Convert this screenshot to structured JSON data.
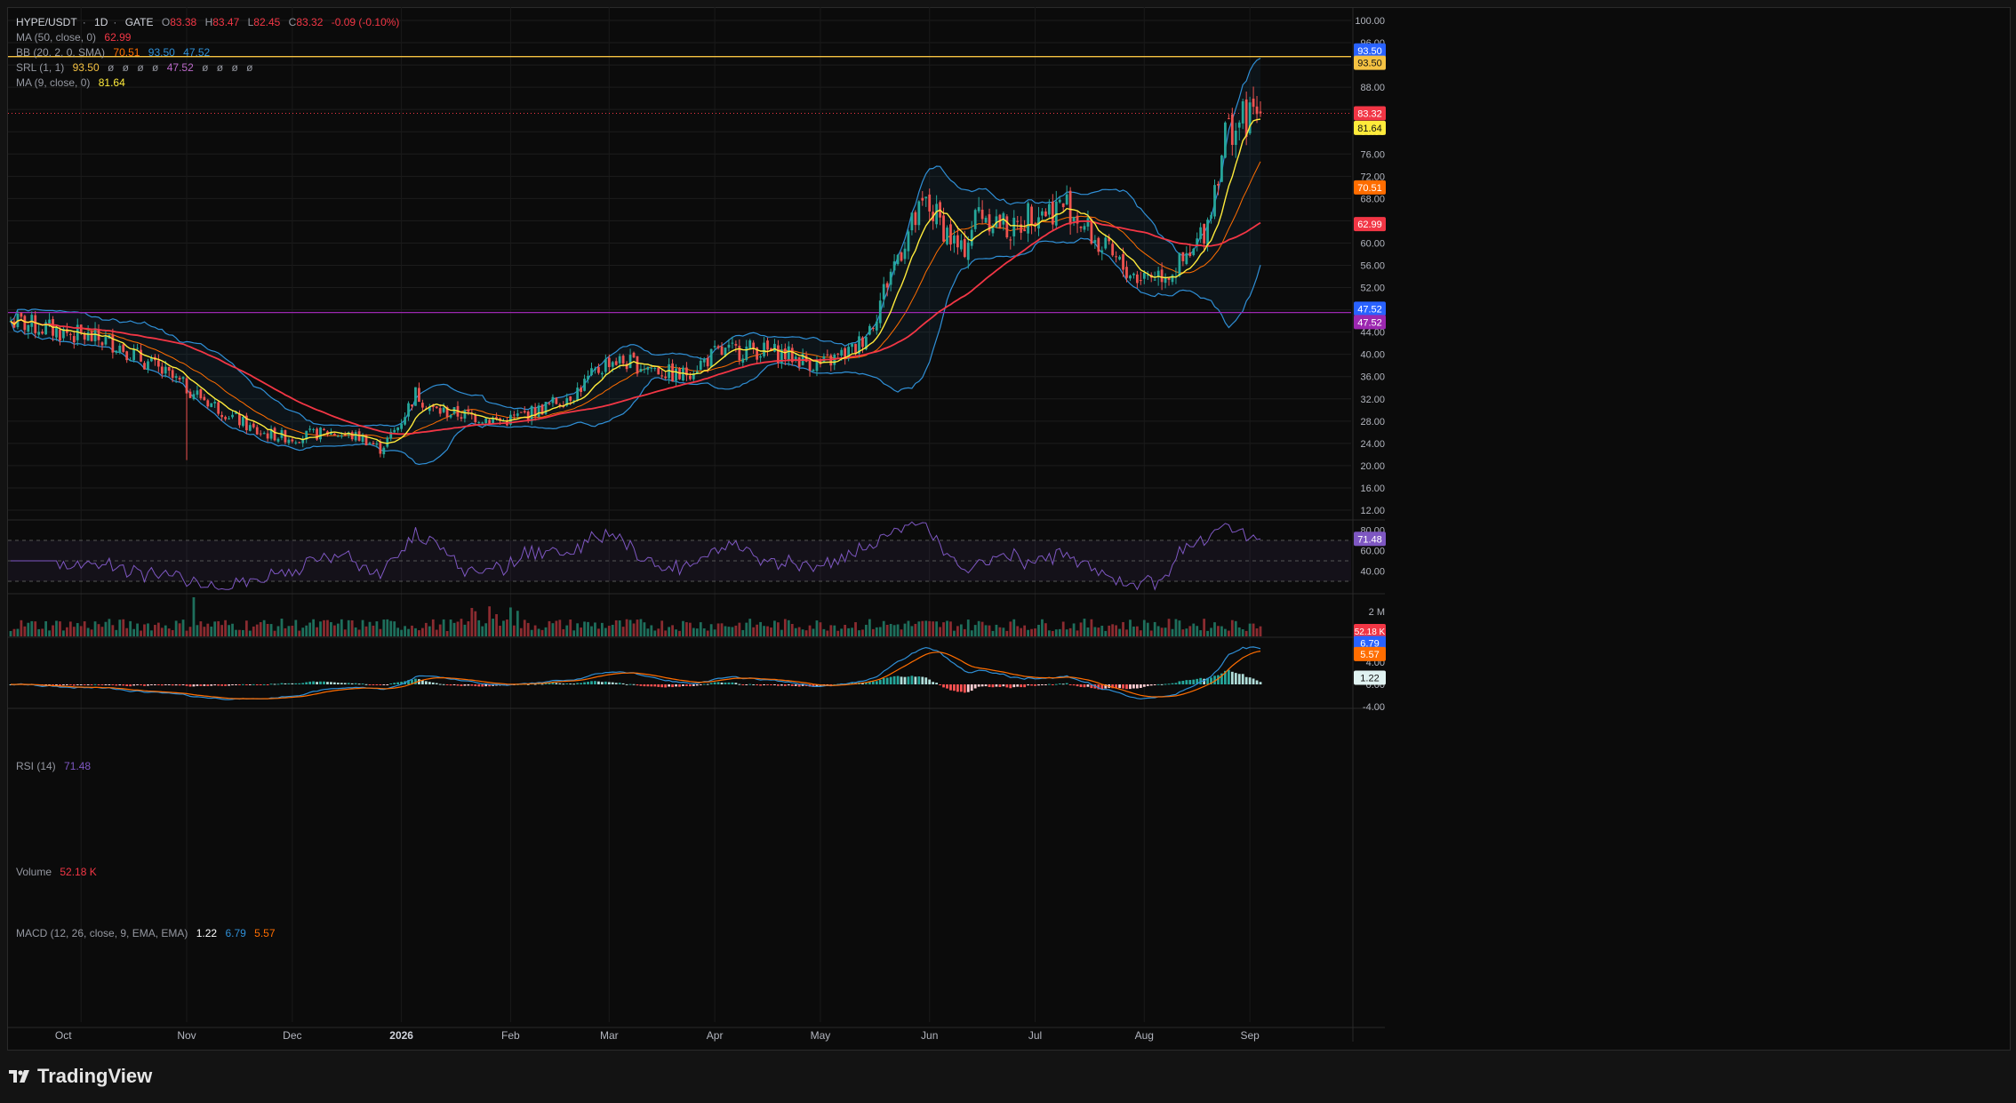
{
  "header": {
    "symbol": "HYPE/USDT",
    "interval": "1D",
    "exchange": "GATE",
    "open_label": "O",
    "open": "83.38",
    "high_label": "H",
    "high": "83.47",
    "low_label": "L",
    "low": "82.45",
    "close_label": "C",
    "close": "83.32",
    "change": "-0.09 (-0.10%)"
  },
  "indicators": {
    "ma50": {
      "label": "MA (50, close, 0)",
      "value": "62.99",
      "color": "#f23645"
    },
    "bb": {
      "label": "BB (20, 2, 0, SMA)",
      "basis": "70.51",
      "upper": "93.50",
      "lower": "47.52",
      "basis_color": "#ff6d00",
      "band_color": "#2f8fd6"
    },
    "srl": {
      "label": "SRL (1, 1)",
      "v1": "93.50",
      "v2": "ø",
      "v3": "ø",
      "v4": "ø",
      "v5": "ø",
      "v6": "47.52",
      "v7": "ø",
      "v8": "ø",
      "v9": "ø",
      "v10": "ø",
      "color_res": "#f5c242",
      "color_sup": "#9c27b0"
    },
    "ma9": {
      "label": "MA (9, close, 0)",
      "value": "81.64",
      "color": "#ffeb3b"
    }
  },
  "price_axis": {
    "ticks": [
      "100.00",
      "96.00",
      "92.00",
      "88.00",
      "84.00",
      "80.00",
      "76.00",
      "72.00",
      "68.00",
      "64.00",
      "60.00",
      "56.00",
      "52.00",
      "48.00",
      "44.00",
      "40.00",
      "36.00",
      "32.00",
      "28.00",
      "24.00",
      "20.00",
      "16.00",
      "12.00"
    ],
    "badges": [
      {
        "text": "93.50",
        "color": "#2962ff"
      },
      {
        "text": "93.50",
        "color": "#f5c242"
      },
      {
        "text": "83.32",
        "color": "#f23645"
      },
      {
        "text": "81.64",
        "color": "#ffeb3b"
      },
      {
        "text": "70.51",
        "color": "#ff6d00"
      },
      {
        "text": "62.99",
        "color": "#f23645"
      },
      {
        "text": "47.52",
        "color": "#2962ff"
      },
      {
        "text": "47.52",
        "color": "#9c27b0"
      }
    ]
  },
  "time_axis": {
    "labels": [
      "Oct",
      "Nov",
      "Dec",
      "2026",
      "Feb",
      "Mar",
      "Apr",
      "May",
      "Jun",
      "Jul",
      "Aug",
      "Sep"
    ]
  },
  "rsi": {
    "label": "RSI (14)",
    "value": "71.48",
    "ticks": [
      "80.00",
      "60.00",
      "40.00"
    ],
    "badge": "71.48",
    "color": "#7e57c2"
  },
  "volume": {
    "label": "Volume",
    "value": "52.18 K",
    "tick": "2 M",
    "badge": "52.18 K"
  },
  "macd": {
    "label": "MACD (12, 26, close, 9, EMA, EMA)",
    "hist": "1.22",
    "macd": "6.79",
    "signal": "5.57",
    "ticks": [
      "4.00",
      "0.00",
      "-4.00"
    ],
    "badges": [
      {
        "text": "6.79",
        "color": "#2962ff"
      },
      {
        "text": "5.57",
        "color": "#ff6d00"
      },
      {
        "text": "1.22",
        "color": "#26a69a"
      }
    ]
  },
  "footer": {
    "brand": "TradingView"
  },
  "chart_data": {
    "type": "candlestick",
    "series": [
      {
        "name": "HYPE/USDT",
        "x_range": [
          "Oct",
          "Sep"
        ],
        "close_path": [
          [
            0,
            46
          ],
          [
            15,
            44
          ],
          [
            30,
            42
          ],
          [
            40,
            38
          ],
          [
            45,
            36
          ],
          [
            60,
            30
          ],
          [
            70,
            26
          ],
          [
            80,
            25
          ],
          [
            90,
            26
          ],
          [
            100,
            25
          ],
          [
            105,
            23
          ],
          [
            110,
            27
          ],
          [
            115,
            33
          ],
          [
            120,
            30
          ],
          [
            130,
            29
          ],
          [
            140,
            28
          ],
          [
            150,
            30
          ],
          [
            160,
            33
          ],
          [
            170,
            39
          ],
          [
            180,
            38
          ],
          [
            190,
            36
          ],
          [
            200,
            40
          ],
          [
            210,
            41
          ],
          [
            220,
            40
          ],
          [
            230,
            38
          ],
          [
            240,
            41
          ],
          [
            245,
            46
          ],
          [
            250,
            55
          ],
          [
            255,
            62
          ],
          [
            260,
            67
          ],
          [
            265,
            63
          ],
          [
            270,
            58
          ],
          [
            275,
            66
          ],
          [
            280,
            64
          ],
          [
            285,
            62
          ],
          [
            290,
            66
          ],
          [
            295,
            66
          ],
          [
            300,
            67
          ],
          [
            305,
            63
          ],
          [
            310,
            59
          ],
          [
            315,
            56
          ],
          [
            320,
            54
          ],
          [
            330,
            55
          ],
          [
            335,
            57
          ],
          [
            340,
            64
          ],
          [
            345,
            80
          ],
          [
            350,
            82
          ],
          [
            355,
            83.32
          ]
        ]
      }
    ],
    "ylim": [
      10,
      102
    ],
    "ma50_last": 62.99,
    "ma9_last": 81.64,
    "bb_upper_last": 93.5,
    "bb_basis_last": 70.51,
    "bb_lower_last": 47.52,
    "resistance": 93.5,
    "support": 47.52,
    "last_close": 83.32,
    "rsi_last": 71.48,
    "macd_last": 6.79,
    "signal_last": 5.57,
    "hist_last": 1.22,
    "volume_last": "52.18 K"
  }
}
